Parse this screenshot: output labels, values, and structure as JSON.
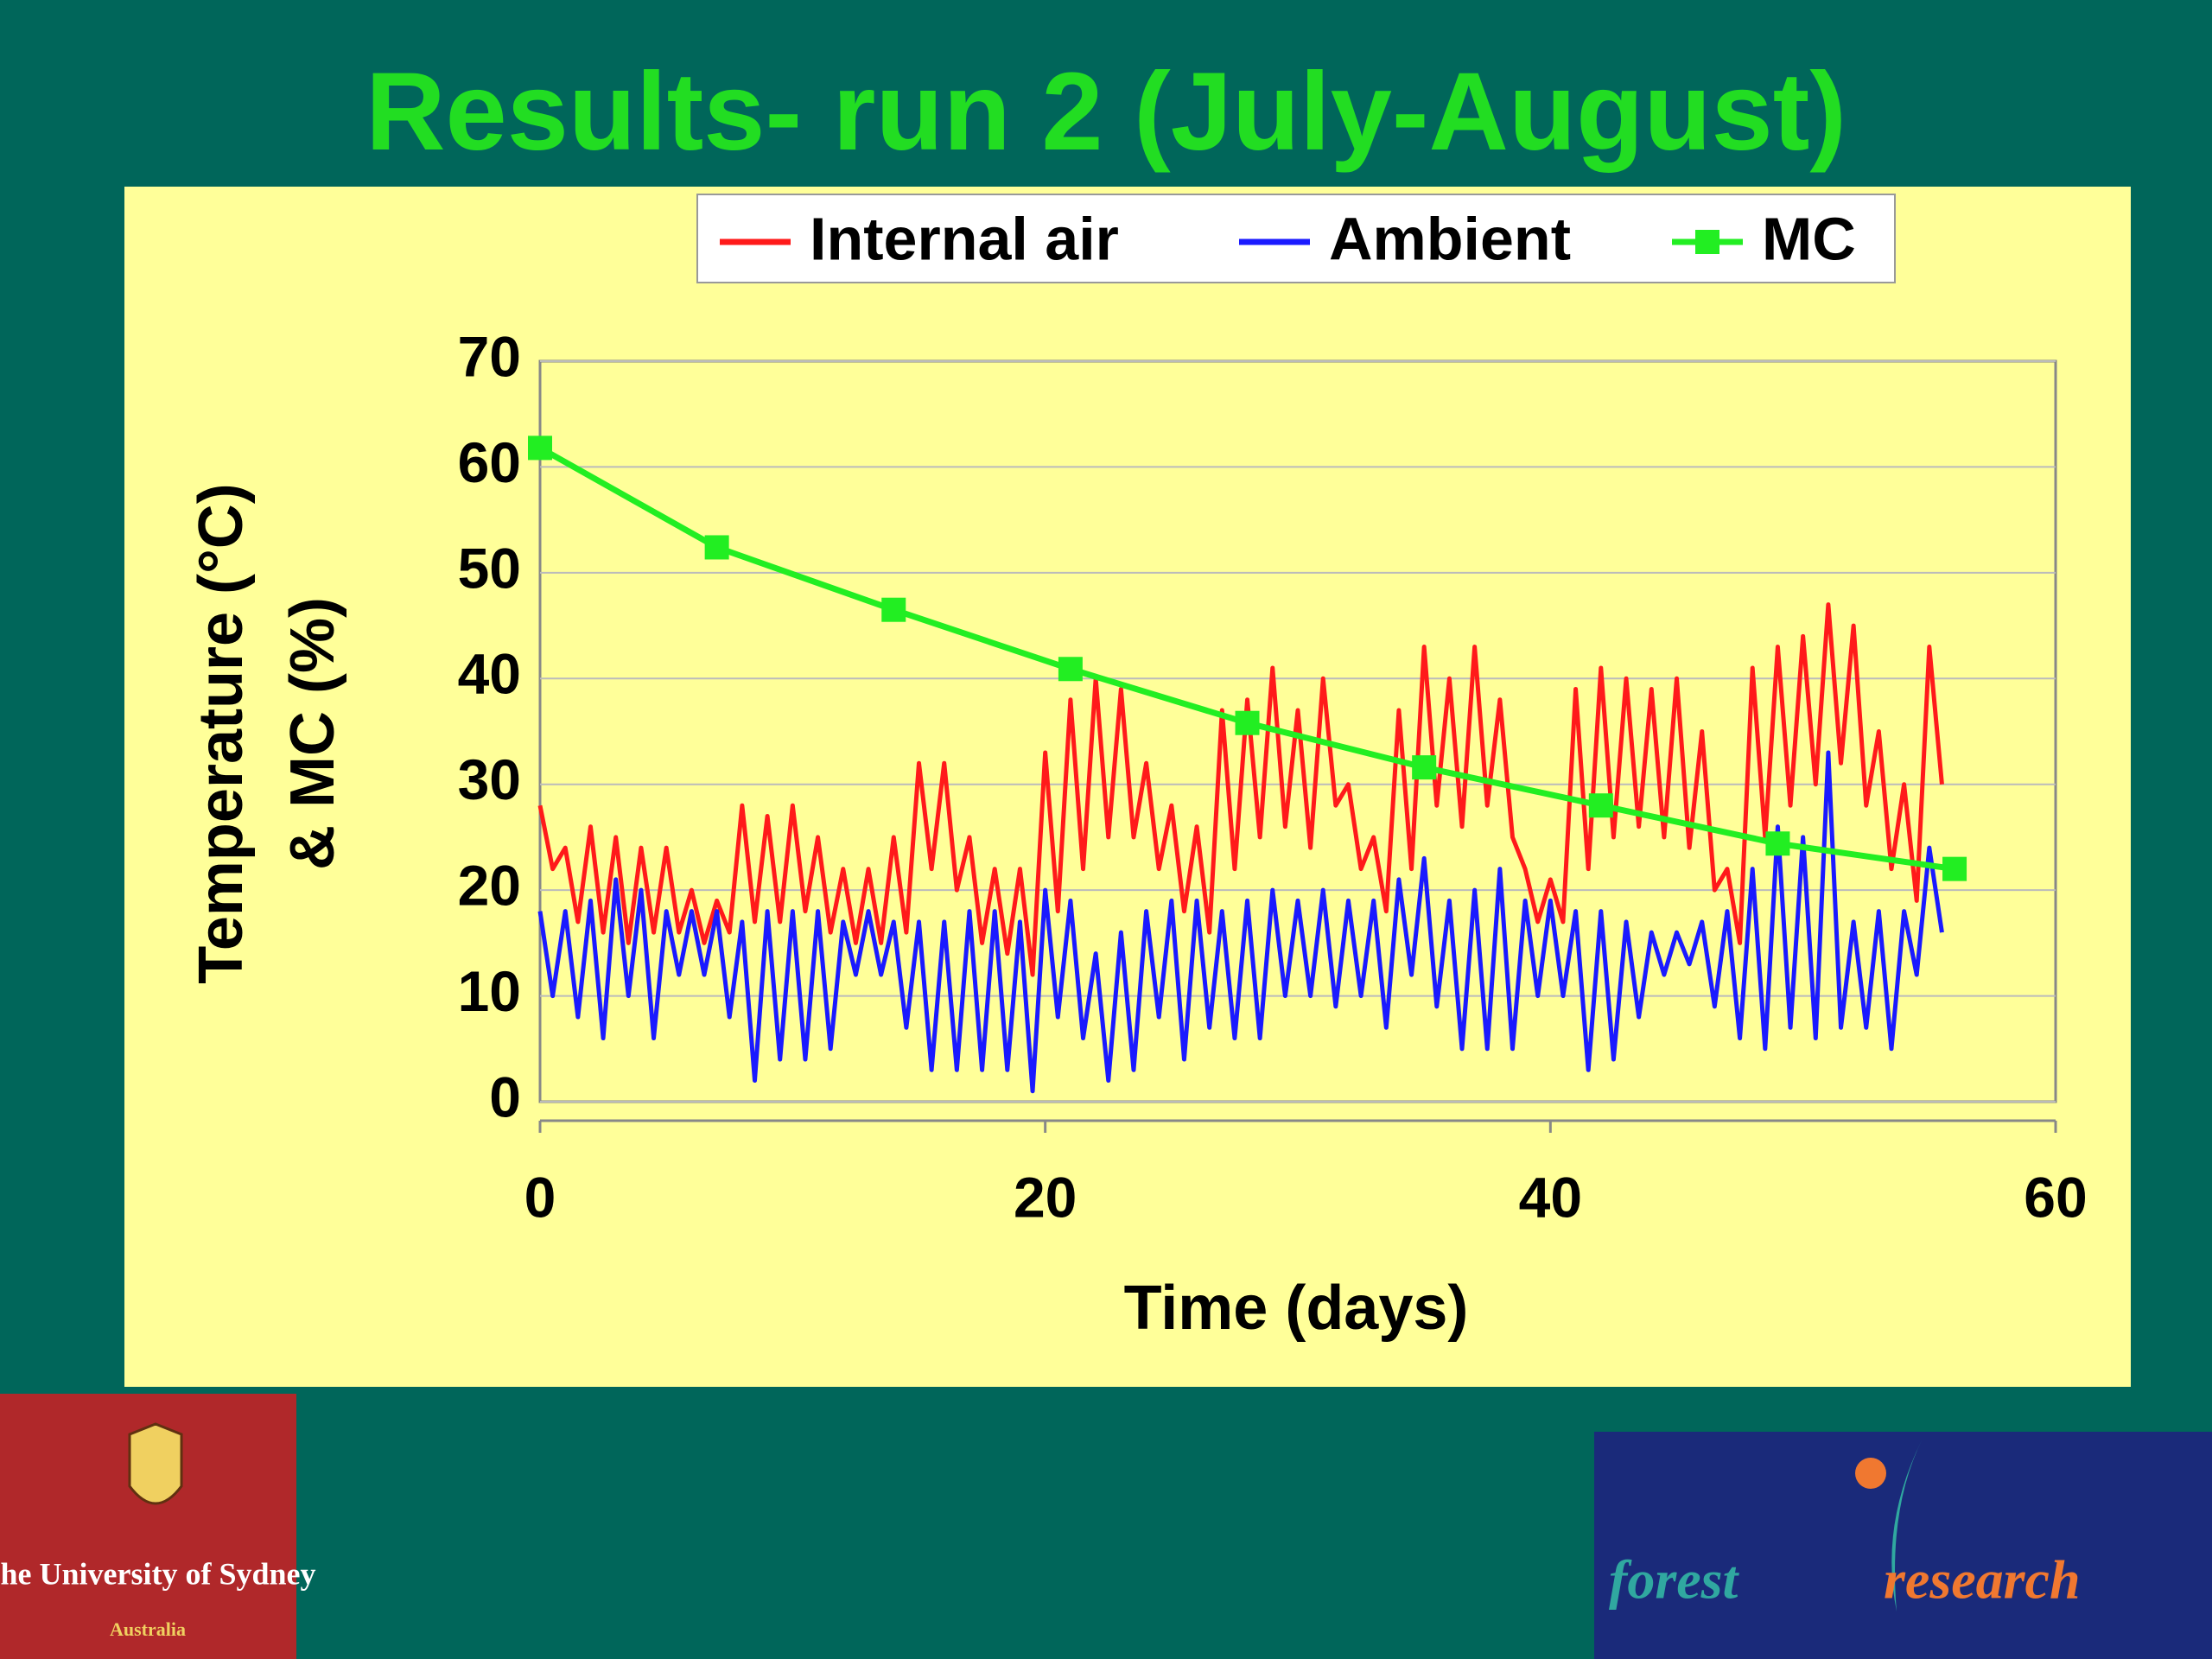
{
  "chart_data": {
    "type": "line",
    "title": "Results- run 2 (July-August)",
    "xlabel": "Time (days)",
    "ylabel": [
      "Temperature (°C)",
      "& MC (%)"
    ],
    "x": [
      0,
      0.5,
      1,
      1.5,
      2,
      2.5,
      3,
      3.5,
      4,
      4.5,
      5,
      5.5,
      6,
      6.5,
      7,
      7.5,
      8,
      8.5,
      9,
      9.5,
      10,
      10.5,
      11,
      11.5,
      12,
      12.5,
      13,
      13.5,
      14,
      14.5,
      15,
      15.5,
      16,
      16.5,
      17,
      17.5,
      18,
      18.5,
      19,
      19.5,
      20,
      20.5,
      21,
      21.5,
      22,
      22.5,
      23,
      23.5,
      24,
      24.5,
      25,
      25.5,
      26,
      26.5,
      27,
      27.5,
      28,
      28.5,
      29,
      29.5,
      30,
      30.5,
      31,
      31.5,
      32,
      32.5,
      33,
      33.5,
      34,
      34.5,
      35,
      35.5,
      36,
      36.5,
      37,
      37.5,
      38,
      38.5,
      39,
      39.5,
      40,
      40.5,
      41,
      41.5,
      42,
      42.5,
      43,
      43.5,
      44,
      44.5,
      45,
      45.5,
      46,
      46.5,
      47,
      47.5,
      48,
      48.5,
      49,
      49.5,
      50,
      50.5,
      51,
      51.5,
      52,
      52.5,
      53,
      53.5,
      54,
      54.5,
      55,
      55.5
    ],
    "series": [
      {
        "name": "Internal air",
        "color": "#ff1a1a",
        "values": [
          28,
          22,
          24,
          17,
          26,
          16,
          25,
          15,
          24,
          16,
          24,
          16,
          20,
          15,
          19,
          16,
          28,
          17,
          27,
          17,
          28,
          18,
          25,
          16,
          22,
          15,
          22,
          15,
          25,
          16,
          32,
          22,
          32,
          20,
          25,
          15,
          22,
          14,
          22,
          12,
          33,
          18,
          38,
          22,
          40,
          25,
          39,
          25,
          32,
          22,
          28,
          18,
          26,
          16,
          37,
          22,
          38,
          25,
          41,
          26,
          37,
          24,
          40,
          28,
          30,
          22,
          25,
          18,
          37,
          22,
          43,
          28,
          40,
          26,
          43,
          28,
          38,
          25,
          22,
          17,
          21,
          17,
          39,
          22,
          41,
          25,
          40,
          26,
          39,
          25,
          40,
          24,
          35,
          20,
          22,
          15,
          41,
          25,
          43,
          28,
          44,
          30,
          47,
          32,
          45,
          28,
          35,
          22,
          30,
          19,
          43,
          30
        ]
      },
      {
        "name": "Ambient",
        "color": "#1a1aff",
        "values": [
          18,
          10,
          18,
          8,
          19,
          6,
          21,
          10,
          20,
          6,
          18,
          12,
          18,
          12,
          18,
          8,
          17,
          2,
          18,
          4,
          18,
          4,
          18,
          5,
          17,
          12,
          18,
          12,
          17,
          7,
          17,
          3,
          17,
          3,
          18,
          3,
          18,
          3,
          17,
          1,
          20,
          8,
          19,
          6,
          14,
          2,
          16,
          3,
          18,
          8,
          19,
          4,
          19,
          7,
          18,
          6,
          19,
          6,
          20,
          10,
          19,
          10,
          20,
          9,
          19,
          10,
          19,
          7,
          21,
          12,
          23,
          9,
          19,
          5,
          20,
          5,
          22,
          5,
          19,
          10,
          19,
          10,
          18,
          3,
          18,
          4,
          17,
          8,
          16,
          12,
          16,
          13,
          17,
          9,
          18,
          6,
          22,
          5,
          26,
          7,
          25,
          6,
          33,
          7,
          17,
          7,
          18,
          5,
          18,
          12,
          24,
          16
        ]
      },
      {
        "name": "MC",
        "color": "#22ee22",
        "marker": "square",
        "x": [
          0,
          7,
          14,
          21,
          28,
          35,
          42,
          49,
          56
        ],
        "values": [
          61.8,
          52.4,
          46.5,
          40.9,
          35.8,
          31.6,
          28.0,
          24.4,
          22.0
        ]
      }
    ],
    "xlim": [
      0,
      60
    ],
    "xticks": [
      0,
      20,
      40,
      60
    ],
    "ylim": [
      0,
      70
    ],
    "yticks": [
      0,
      10,
      20,
      30,
      40,
      50,
      60,
      70
    ],
    "grid": true,
    "legend": "top"
  },
  "logos": {
    "university": [
      "The University of Sydney",
      "Australia"
    ],
    "forest": [
      "forest",
      "research"
    ]
  }
}
